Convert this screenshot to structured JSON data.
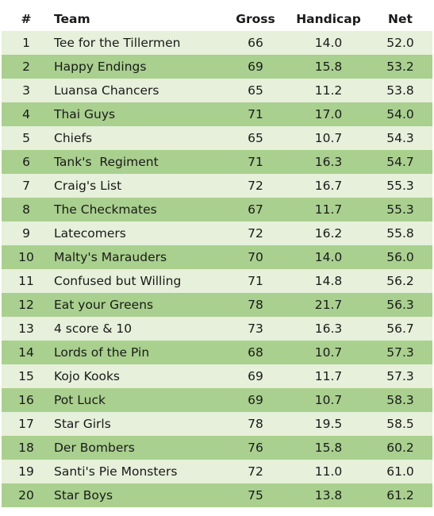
{
  "table": {
    "headers": {
      "rank": "#",
      "team": "Team",
      "gross": "Gross",
      "handicap": "Handicap",
      "net": "Net"
    },
    "rows": [
      {
        "rank": "1",
        "team": "Tee for the Tillermen",
        "gross": "66",
        "handicap": "14.0",
        "net": "52.0"
      },
      {
        "rank": "2",
        "team": "Happy Endings",
        "gross": "69",
        "handicap": "15.8",
        "net": "53.2"
      },
      {
        "rank": "3",
        "team": "Luansa Chancers",
        "gross": "65",
        "handicap": "11.2",
        "net": "53.8"
      },
      {
        "rank": "4",
        "team": "Thai Guys",
        "gross": "71",
        "handicap": "17.0",
        "net": "54.0"
      },
      {
        "rank": "5",
        "team": "Chiefs",
        "gross": "65",
        "handicap": "10.7",
        "net": "54.3"
      },
      {
        "rank": "6",
        "team": "Tank's  Regiment",
        "gross": "71",
        "handicap": "16.3",
        "net": "54.7"
      },
      {
        "rank": "7",
        "team": "Craig's List",
        "gross": "72",
        "handicap": "16.7",
        "net": "55.3"
      },
      {
        "rank": "8",
        "team": "The Checkmates",
        "gross": "67",
        "handicap": "11.7",
        "net": "55.3"
      },
      {
        "rank": "9",
        "team": "Latecomers",
        "gross": "72",
        "handicap": "16.2",
        "net": "55.8"
      },
      {
        "rank": "10",
        "team": "Malty's Marauders",
        "gross": "70",
        "handicap": "14.0",
        "net": "56.0"
      },
      {
        "rank": "11",
        "team": "Confused but Willing",
        "gross": "71",
        "handicap": "14.8",
        "net": "56.2"
      },
      {
        "rank": "12",
        "team": "Eat your Greens",
        "gross": "78",
        "handicap": "21.7",
        "net": "56.3"
      },
      {
        "rank": "13",
        "team": "4 score & 10",
        "gross": "73",
        "handicap": "16.3",
        "net": "56.7"
      },
      {
        "rank": "14",
        "team": "Lords of the Pin",
        "gross": "68",
        "handicap": "10.7",
        "net": "57.3"
      },
      {
        "rank": "15",
        "team": "Kojo Kooks",
        "gross": "69",
        "handicap": "11.7",
        "net": "57.3"
      },
      {
        "rank": "16",
        "team": "Pot Luck",
        "gross": "69",
        "handicap": "10.7",
        "net": "58.3"
      },
      {
        "rank": "17",
        "team": "Star Girls",
        "gross": "78",
        "handicap": "19.5",
        "net": "58.5"
      },
      {
        "rank": "18",
        "team": "Der Bombers",
        "gross": "76",
        "handicap": "15.8",
        "net": "60.2"
      },
      {
        "rank": "19",
        "team": "Santi's Pie Monsters",
        "gross": "72",
        "handicap": "11.0",
        "net": "61.0"
      },
      {
        "rank": "20",
        "team": "Star Boys",
        "gross": "75",
        "handicap": "13.8",
        "net": "61.2"
      }
    ]
  },
  "colors": {
    "row_light": "#e6f0da",
    "row_dark": "#a9d08e",
    "header_bg": "#ffffff"
  }
}
